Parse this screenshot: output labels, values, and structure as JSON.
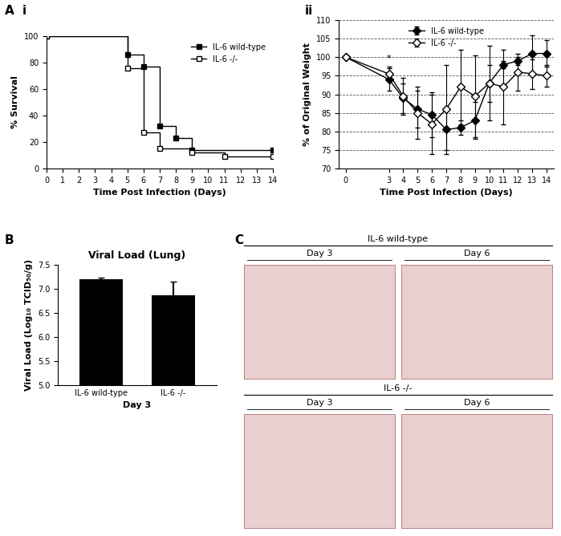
{
  "panel_labels": [
    "A",
    "i",
    "ii",
    "B",
    "C"
  ],
  "chart_data": [
    {
      "type": "step",
      "x_label": "Time Post Infection (Days)",
      "y_label": "% Survival",
      "xlim": [
        0,
        14
      ],
      "xticks": [
        0,
        1,
        2,
        3,
        4,
        5,
        6,
        7,
        8,
        9,
        10,
        11,
        12,
        13,
        14
      ],
      "ylim": [
        0,
        100
      ],
      "yticks": [
        0,
        20,
        40,
        60,
        80,
        100
      ],
      "legend": "upper right",
      "series": [
        {
          "name": "IL-6 wild-type",
          "color": "#000000",
          "marker": "square",
          "x": [
            0,
            5,
            6,
            7,
            8,
            9,
            14
          ],
          "values": [
            100,
            86,
            77,
            32,
            23,
            14,
            14
          ]
        },
        {
          "name": "IL-6 -/-",
          "color": "#000000",
          "marker": "square-open",
          "x": [
            0,
            5,
            6,
            7,
            9,
            11,
            14
          ],
          "values": [
            100,
            76,
            27,
            15,
            12,
            9,
            9
          ]
        }
      ]
    },
    {
      "type": "line",
      "x_label": "Time Post Infection (Days)",
      "y_label": "% of Original Weight",
      "xlim": [
        -0.5,
        14.5
      ],
      "xticks": [
        0,
        3,
        4,
        5,
        6,
        7,
        8,
        9,
        10,
        11,
        12,
        13,
        14
      ],
      "ylim": [
        70,
        110
      ],
      "yticks": [
        70,
        75,
        80,
        85,
        90,
        95,
        100,
        105,
        110
      ],
      "grid": "y",
      "legend": "upper center",
      "annotations": [
        {
          "text": "*",
          "x": 3,
          "y": 98.5
        }
      ],
      "series": [
        {
          "name": "IL-6 wild-type",
          "color": "#000000",
          "marker": "diamond",
          "x": [
            0,
            3,
            4,
            5,
            6,
            7,
            8,
            9,
            10,
            11,
            12,
            13,
            14
          ],
          "values": [
            100,
            94,
            89,
            86,
            84.5,
            80.5,
            81,
            83,
            93,
            98,
            99,
            101,
            101
          ],
          "errors": [
            0,
            3,
            4,
            5,
            6,
            5.5,
            2,
            5,
            5,
            1,
            1,
            5,
            3.5
          ]
        },
        {
          "name": "IL-6 -/-",
          "color": "#000000",
          "marker": "diamond-open",
          "x": [
            0,
            3,
            4,
            5,
            6,
            7,
            8,
            9,
            10,
            11,
            12,
            13,
            14
          ],
          "values": [
            100,
            95.5,
            89.5,
            85,
            82,
            86,
            92,
            89.5,
            93,
            92,
            96,
            95.5,
            95
          ],
          "errors": [
            0,
            2,
            5,
            7,
            8,
            12,
            10,
            11,
            10,
            10,
            5,
            4,
            3
          ]
        }
      ]
    },
    {
      "type": "bar",
      "title": "Viral Load (Lung)",
      "x_label": "Day 3",
      "y_label": "Viral Load (Log₁₀ TCID₅₀/g)",
      "categories": [
        "IL-6 wild-type",
        "IL-6 -/-"
      ],
      "values": [
        7.2,
        6.87
      ],
      "errors": [
        0.04,
        0.28
      ],
      "color": "#000000",
      "ylim": [
        5.0,
        7.5
      ],
      "yticks": [
        5.0,
        5.5,
        6.0,
        6.5,
        7.0,
        7.5
      ]
    }
  ],
  "histology": {
    "groups": [
      {
        "title": "IL-6 wild-type",
        "images": [
          "Day 3",
          "Day 6"
        ]
      },
      {
        "title": "IL-6 -/-",
        "images": [
          "Day 3",
          "Day 6"
        ]
      }
    ]
  }
}
